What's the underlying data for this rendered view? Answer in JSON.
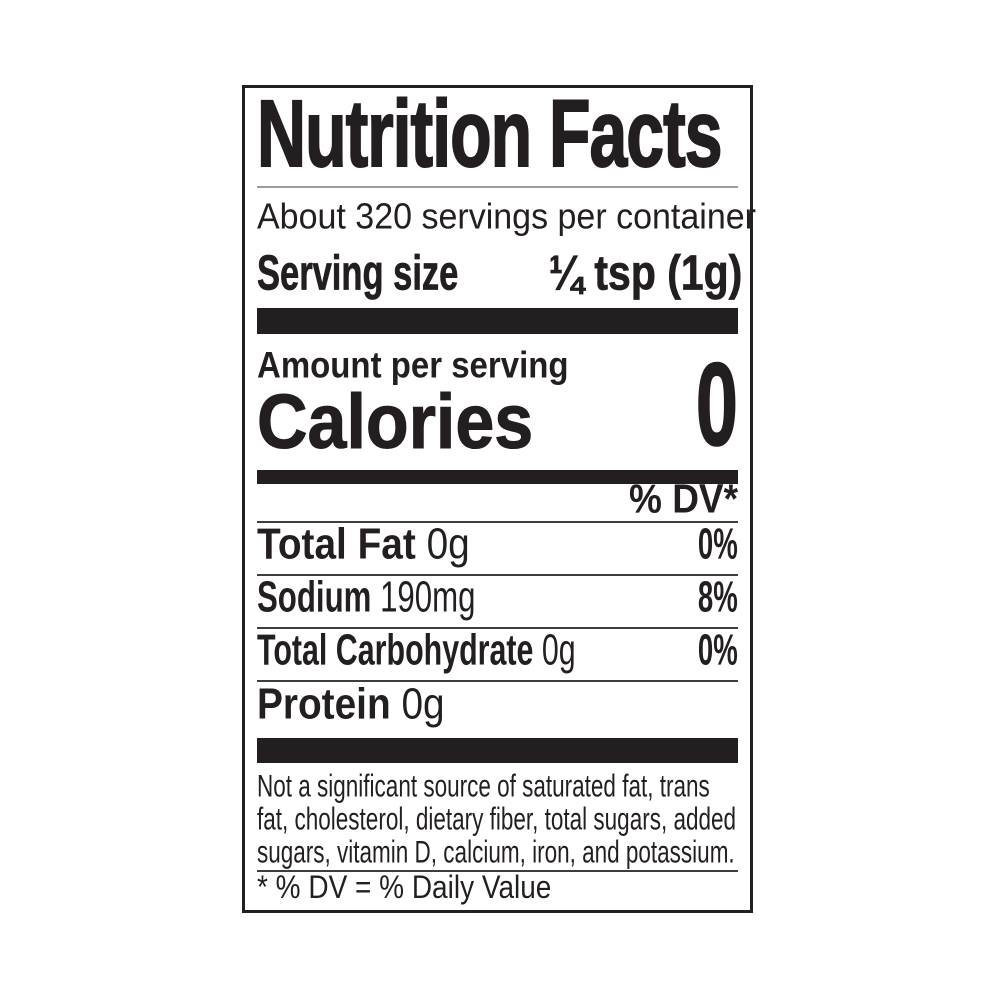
{
  "colors": {
    "ink": "#231f20",
    "background": "#ffffff",
    "rule_light": "#9b9b9b",
    "rule": "#3d3d3d"
  },
  "label": {
    "title": "Nutrition Facts",
    "servings_per_container": "About 320 servings per container",
    "serving_size": {
      "label": "Serving size",
      "value": "¼ tsp (1g)"
    },
    "amount_per_serving": "Amount per serving",
    "calories": {
      "label": "Calories",
      "value": "0"
    },
    "dv_header": "% DV*",
    "nutrients": [
      {
        "name": "Total Fat",
        "amount": "0g",
        "dv": "0%"
      },
      {
        "name": "Sodium",
        "amount": "190mg",
        "dv": "8%"
      },
      {
        "name": "Total Carbohydrate",
        "amount": "0g",
        "dv": "0%"
      },
      {
        "name": "Protein",
        "amount": "0g",
        "dv": ""
      }
    ],
    "disclaimer": "Not a significant source of saturated fat, trans fat, cholesterol, dietary fiber, total sugars, added sugars, vitamin D, calcium, iron, and potassium.",
    "disclaimer_lines": [
      "Not a significant source of saturated fat, trans",
      "fat, cholesterol, dietary fiber, total sugars, added",
      "sugars, vitamin D, calcium, iron, and potassium."
    ],
    "footnote": "* % DV = % Daily Value"
  }
}
